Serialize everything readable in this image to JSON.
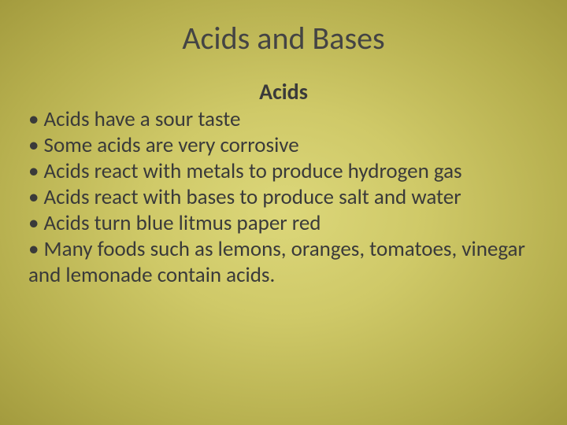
{
  "slide": {
    "title": "Acids and Bases",
    "subheading": "Acids",
    "bullets": [
      "• Acids have a sour taste",
      "• Some acids are very corrosive",
      "• Acids react with metals to produce hydrogen gas",
      "• Acids react with bases to produce salt and water",
      "• Acids turn blue litmus paper red",
      "• Many foods such as lemons, oranges, tomatoes, vinegar and lemonade contain acids."
    ],
    "background_gradient": [
      "#dcd77a",
      "#cfc968",
      "#b5ae4d",
      "#a39b3e"
    ],
    "title_fontsize": 40,
    "body_fontsize": 27,
    "font_family": "Calibri",
    "text_color": "#3a3a3a"
  }
}
